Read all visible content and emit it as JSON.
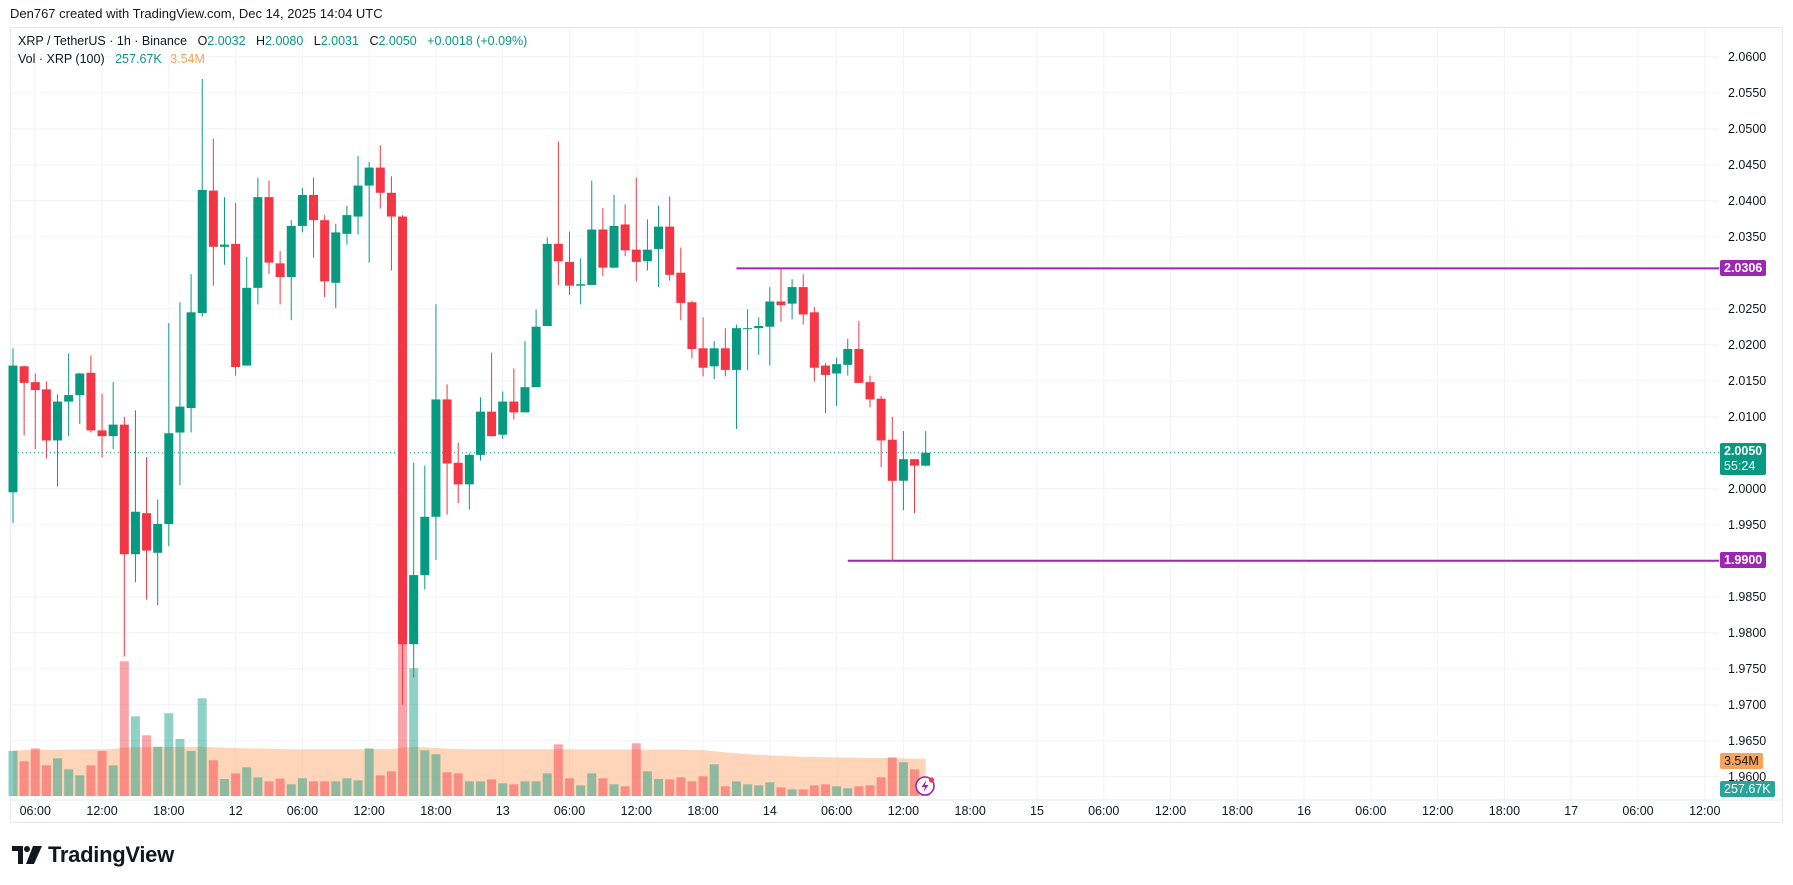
{
  "attribution": "Den767 created with TradingView.com, Dec 14, 2025 14:04 UTC",
  "legend": {
    "symbol": "XRP / TetherUS · 1h · Binance",
    "open_label": "O",
    "open": "2.0032",
    "high_label": "H",
    "high": "2.0080",
    "low_label": "L",
    "low": "2.0031",
    "close_label": "C",
    "close": "2.0050",
    "change": "+0.0018 (+0.09%)",
    "volume_title": "Vol · XRP (100)",
    "volume_value": "257.67K",
    "volume_ma": "3.54M"
  },
  "price_tags": {
    "resistance": "2.0306",
    "current_price": "2.0050",
    "countdown": "55:24",
    "support": "1.9900",
    "volume_ma": "3.54M",
    "volume_current": "257.67K"
  },
  "logo_text": "TradingView",
  "colors": {
    "up": "#089981",
    "down": "#F23645",
    "level_line": "#9C27B0",
    "volume_ma": "#F7A35C",
    "grid": "#F0F3FA"
  },
  "icons": {
    "logo": "tradingview-logo-icon",
    "alert": "lightning-icon"
  },
  "chart_data": {
    "type": "candlestick",
    "symbol": "XRP / TetherUS",
    "interval": "1h",
    "first_bar_time": "2025-12-11 04:00",
    "ylim": [
      1.9575,
      2.064
    ],
    "grid": true,
    "price_ticks": [
      "2.0600",
      "2.0550",
      "2.0500",
      "2.0450",
      "2.0400",
      "2.0350",
      "2.0250",
      "2.0200",
      "2.0150",
      "2.0100",
      "2.0000",
      "1.9950",
      "1.9850",
      "1.9800",
      "1.9750",
      "1.9700",
      "1.9650",
      "1.9600"
    ],
    "time_ticks": [
      {
        "label": "06:00",
        "time": "2025-12-11 06:00"
      },
      {
        "label": "12:00",
        "time": "2025-12-11 12:00"
      },
      {
        "label": "18:00",
        "time": "2025-12-11 18:00"
      },
      {
        "label": "12",
        "time": "2025-12-12 00:00"
      },
      {
        "label": "06:00",
        "time": "2025-12-12 06:00"
      },
      {
        "label": "12:00",
        "time": "2025-12-12 12:00"
      },
      {
        "label": "18:00",
        "time": "2025-12-12 18:00"
      },
      {
        "label": "13",
        "time": "2025-12-13 00:00"
      },
      {
        "label": "06:00",
        "time": "2025-12-13 06:00"
      },
      {
        "label": "12:00",
        "time": "2025-12-13 12:00"
      },
      {
        "label": "18:00",
        "time": "2025-12-13 18:00"
      },
      {
        "label": "14",
        "time": "2025-12-14 00:00"
      },
      {
        "label": "06:00",
        "time": "2025-12-14 06:00"
      },
      {
        "label": "12:00",
        "time": "2025-12-14 12:00"
      },
      {
        "label": "18:00",
        "time": "2025-12-14 18:00"
      },
      {
        "label": "15",
        "time": "2025-12-15 00:00"
      },
      {
        "label": "06:00",
        "time": "2025-12-15 06:00"
      },
      {
        "label": "12:00",
        "time": "2025-12-15 12:00"
      },
      {
        "label": "18:00",
        "time": "2025-12-15 18:00"
      },
      {
        "label": "16",
        "time": "2025-12-16 00:00"
      },
      {
        "label": "06:00",
        "time": "2025-12-16 06:00"
      },
      {
        "label": "12:00",
        "time": "2025-12-16 12:00"
      },
      {
        "label": "18:00",
        "time": "2025-12-16 18:00"
      },
      {
        "label": "17",
        "time": "2025-12-17 00:00"
      },
      {
        "label": "06:00",
        "time": "2025-12-17 06:00"
      },
      {
        "label": "12:00",
        "time": "2025-12-17 12:00"
      }
    ],
    "ohlc": [
      [
        1.9995,
        2.0195,
        1.9952,
        2.0171
      ],
      [
        2.017,
        2.0171,
        2.0074,
        2.0147
      ],
      [
        2.0148,
        2.016,
        2.0055,
        2.0137
      ],
      [
        2.0138,
        2.0149,
        2.0042,
        2.0067
      ],
      [
        2.0067,
        2.0131,
        2.0003,
        2.0121
      ],
      [
        2.0121,
        2.0188,
        2.0073,
        2.013
      ],
      [
        2.013,
        2.0161,
        2.009,
        2.016
      ],
      [
        2.0161,
        2.0185,
        2.0078,
        2.0081
      ],
      [
        2.0081,
        2.0132,
        2.0043,
        2.0073
      ],
      [
        2.0073,
        2.0148,
        2.0055,
        2.0089
      ],
      [
        2.0089,
        2.01,
        1.9767,
        1.9909
      ],
      [
        1.9909,
        2.0109,
        1.987,
        1.9968
      ],
      [
        1.9966,
        2.0044,
        1.9846,
        1.9914
      ],
      [
        1.9911,
        1.9985,
        1.9838,
        1.9951
      ],
      [
        1.9951,
        2.023,
        1.992,
        2.0077
      ],
      [
        2.0078,
        2.0259,
        2.0005,
        2.0114
      ],
      [
        2.0112,
        2.0298,
        2.0078,
        2.0245
      ],
      [
        2.0244,
        2.0569,
        2.0239,
        2.0415
      ],
      [
        2.0414,
        2.0486,
        2.0282,
        2.0336
      ],
      [
        2.0336,
        2.0405,
        2.0311,
        2.0339
      ],
      [
        2.034,
        2.0397,
        2.0157,
        2.0169
      ],
      [
        2.0171,
        2.0322,
        2.0171,
        2.0279
      ],
      [
        2.0279,
        2.0432,
        2.0256,
        2.0405
      ],
      [
        2.0405,
        2.0428,
        2.0298,
        2.0314
      ],
      [
        2.0313,
        2.033,
        2.0256,
        2.0294
      ],
      [
        2.0294,
        2.0373,
        2.0234,
        2.0365
      ],
      [
        2.0365,
        2.0418,
        2.0356,
        2.0408
      ],
      [
        2.0408,
        2.0432,
        2.0321,
        2.0373
      ],
      [
        2.0373,
        2.038,
        2.0266,
        2.0288
      ],
      [
        2.0286,
        2.0368,
        2.0251,
        2.0356
      ],
      [
        2.0354,
        2.0393,
        2.0339,
        2.038
      ],
      [
        2.0378,
        2.0462,
        2.0353,
        2.0421
      ],
      [
        2.0421,
        2.0454,
        2.0314,
        2.0446
      ],
      [
        2.0446,
        2.0477,
        2.0389,
        2.0411
      ],
      [
        2.0411,
        2.0434,
        2.0303,
        2.0378
      ],
      [
        2.0378,
        2.038,
        1.97,
        1.9784
      ],
      [
        1.9784,
        2.0036,
        1.9738,
        1.988
      ],
      [
        1.988,
        2.0032,
        1.986,
        1.9961
      ],
      [
        1.9961,
        2.0256,
        1.9901,
        2.0124
      ],
      [
        2.0124,
        2.0145,
        1.9964,
        2.0035
      ],
      [
        2.0036,
        2.0064,
        1.998,
        2.0006
      ],
      [
        2.0006,
        2.0049,
        1.9971,
        2.0047
      ],
      [
        2.0047,
        2.0127,
        2.0039,
        2.0107
      ],
      [
        2.0107,
        2.0189,
        2.0073,
        2.0073
      ],
      [
        2.0075,
        2.0135,
        2.0069,
        2.0121
      ],
      [
        2.0121,
        2.0167,
        2.0096,
        2.0106
      ],
      [
        2.0106,
        2.0205,
        2.0106,
        2.0141
      ],
      [
        2.0141,
        2.0249,
        2.0141,
        2.0225
      ],
      [
        2.0226,
        2.0349,
        2.0226,
        2.034
      ],
      [
        2.034,
        2.0482,
        2.0283,
        2.0316
      ],
      [
        2.0315,
        2.0357,
        2.0269,
        2.0282
      ],
      [
        2.0282,
        2.032,
        2.0256,
        2.0284
      ],
      [
        2.0283,
        2.0428,
        2.0283,
        2.036
      ],
      [
        2.036,
        2.039,
        2.0295,
        2.0307
      ],
      [
        2.0307,
        2.0408,
        2.0306,
        2.0365
      ],
      [
        2.0367,
        2.0395,
        2.0323,
        2.0331
      ],
      [
        2.0332,
        2.0432,
        2.0288,
        2.0315
      ],
      [
        2.0316,
        2.0374,
        2.0303,
        2.0332
      ],
      [
        2.0333,
        2.0393,
        2.028,
        2.0364
      ],
      [
        2.0364,
        2.0406,
        2.0289,
        2.0297
      ],
      [
        2.03,
        2.0335,
        2.0234,
        2.0258
      ],
      [
        2.0259,
        2.0261,
        2.0181,
        2.0194
      ],
      [
        2.0195,
        2.0238,
        2.0156,
        2.0168
      ],
      [
        2.017,
        2.0205,
        2.0152,
        2.0195
      ],
      [
        2.0195,
        2.0223,
        2.0156,
        2.0165
      ],
      [
        2.0165,
        2.0228,
        2.0083,
        2.0223
      ],
      [
        2.0222,
        2.0249,
        2.0165,
        2.0223
      ],
      [
        2.0223,
        2.0238,
        2.0186,
        2.0226
      ],
      [
        2.0225,
        2.028,
        2.0171,
        2.026
      ],
      [
        2.026,
        2.0306,
        2.0232,
        2.0255
      ],
      [
        2.0257,
        2.0291,
        2.0235,
        2.028
      ],
      [
        2.028,
        2.0298,
        2.0228,
        2.0242
      ],
      [
        2.0245,
        2.0252,
        2.0149,
        2.0168
      ],
      [
        2.0171,
        2.0174,
        2.0105,
        2.0158
      ],
      [
        2.016,
        2.0182,
        2.0115,
        2.0173
      ],
      [
        2.0172,
        2.0208,
        2.0157,
        2.0194
      ],
      [
        2.0194,
        2.0233,
        2.0147,
        2.0147
      ],
      [
        2.0148,
        2.0157,
        2.0113,
        2.0124
      ],
      [
        2.0125,
        2.0129,
        2.003,
        2.0067
      ],
      [
        2.0068,
        2.01,
        1.99,
        2.0011
      ],
      [
        2.0011,
        2.008,
        1.997,
        2.0041
      ],
      [
        2.0041,
        2.0041,
        1.9966,
        2.0032
      ],
      [
        2.0032,
        2.008,
        2.0031,
        2.005
      ]
    ],
    "volume_millions": [
      4.27,
      3.29,
      4.52,
      2.91,
      3.58,
      2.53,
      1.96,
      2.91,
      4.27,
      2.91,
      12.78,
      7.56,
      5.76,
      4.68,
      7.85,
      5.41,
      4.27,
      9.27,
      3.39,
      1.61,
      2.15,
      2.72,
      1.77,
      1.39,
      1.65,
      1.11,
      1.68,
      1.39,
      1.39,
      1.39,
      1.68,
      1.49,
      4.52,
      1.96,
      2.34,
      18.4,
      12.12,
      4.33,
      3.96,
      2.25,
      2.15,
      1.39,
      1.39,
      1.58,
      1.2,
      1.11,
      1.39,
      1.39,
      2.15,
      4.9,
      1.68,
      1.01,
      2.15,
      1.68,
      1.11,
      0.92,
      5.0,
      2.34,
      1.61,
      1.58,
      1.77,
      1.39,
      1.87,
      3.01,
      0.92,
      1.39,
      1.11,
      1.01,
      1.3,
      0.82,
      0.63,
      0.63,
      1.01,
      1.11,
      0.92,
      0.73,
      0.92,
      1.01,
      1.77,
      3.67,
      3.2,
      2.53,
      0.258
    ],
    "volume_ma_millions": [
      4.33,
      4.35,
      4.37,
      4.38,
      4.4,
      4.4,
      4.42,
      4.42,
      4.43,
      4.45,
      4.6,
      4.62,
      4.63,
      4.64,
      4.65,
      4.65,
      4.65,
      4.66,
      4.62,
      4.6,
      4.55,
      4.52,
      4.5,
      4.48,
      4.45,
      4.43,
      4.43,
      4.43,
      4.43,
      4.43,
      4.43,
      4.43,
      4.45,
      4.45,
      4.45,
      4.6,
      4.65,
      4.62,
      4.55,
      4.48,
      4.45,
      4.43,
      4.43,
      4.43,
      4.43,
      4.43,
      4.43,
      4.43,
      4.43,
      4.43,
      4.43,
      4.42,
      4.42,
      4.42,
      4.42,
      4.42,
      4.42,
      4.4,
      4.4,
      4.4,
      4.4,
      4.38,
      4.35,
      4.25,
      4.15,
      4.05,
      3.97,
      3.9,
      3.85,
      3.8,
      3.76,
      3.72,
      3.7,
      3.68,
      3.66,
      3.65,
      3.63,
      3.62,
      3.6,
      3.58,
      3.56,
      3.55,
      3.54
    ],
    "horizontal_levels": [
      {
        "price": 2.0306,
        "from_time": "2025-12-13 21:00"
      },
      {
        "price": 1.99,
        "from_time": "2025-12-14 07:00"
      }
    ],
    "last_price": 2.005
  }
}
